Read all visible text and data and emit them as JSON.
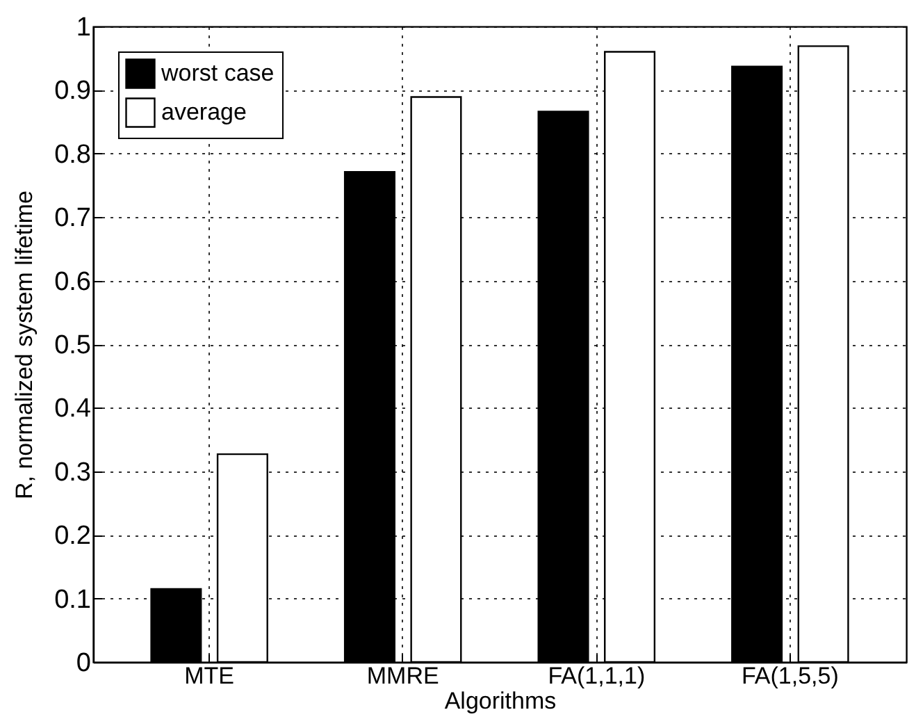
{
  "chart_data": {
    "type": "bar",
    "xlabel": "Algorithms",
    "ylabel": "R, normalized system lifetime",
    "categories": [
      "MTE",
      "MMRE",
      "FA(1,1,1)",
      "FA(1,5,5)"
    ],
    "series": [
      {
        "name": "worst case",
        "color": "#000000",
        "values": [
          0.115,
          0.771,
          0.866,
          0.937
        ]
      },
      {
        "name": "average",
        "color": "#ffffff",
        "values": [
          0.327,
          0.889,
          0.96,
          0.969
        ]
      }
    ],
    "ylim": [
      0,
      1
    ],
    "yticks": [
      0,
      0.1,
      0.2,
      0.3,
      0.4,
      0.5,
      0.6,
      0.7,
      0.8,
      0.9,
      1
    ],
    "grid": true,
    "legend": "top left"
  }
}
